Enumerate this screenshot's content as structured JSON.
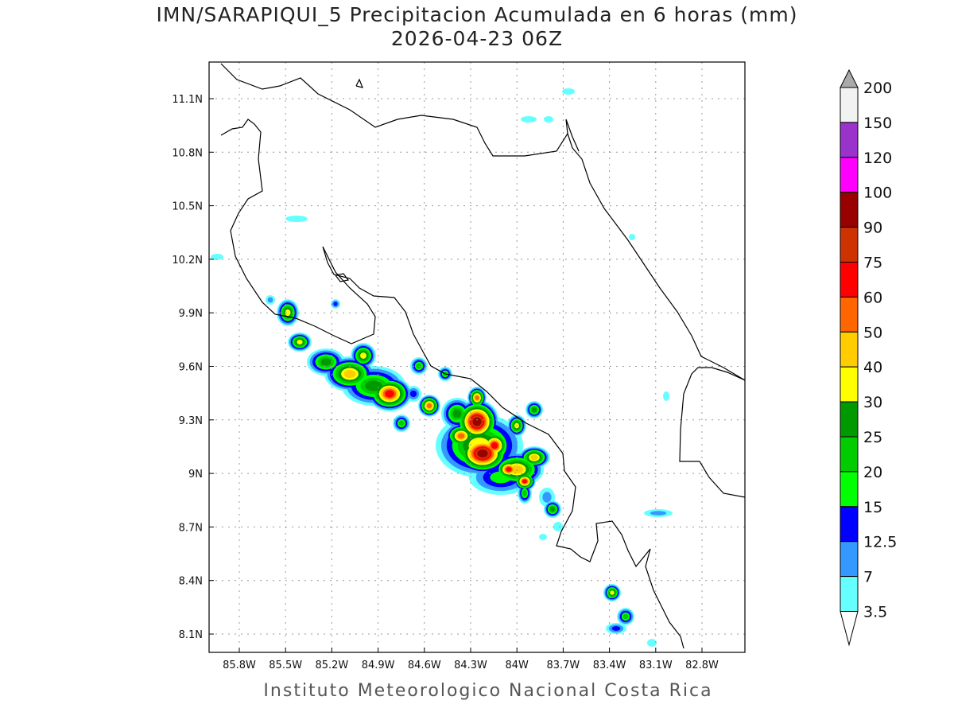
{
  "title": "IMN/SARAPIQUI_5 Precipitacion Acumulada en 6 horas (mm)",
  "subtitle": "2026-04-23 06Z",
  "footer": "Instituto Meteorologico Nacional Costa Rica",
  "map": {
    "lon_ticks": [
      "85.8W",
      "85.5W",
      "85.2W",
      "84.9W",
      "84.6W",
      "84.3W",
      "84W",
      "83.7W",
      "83.4W",
      "83.1W",
      "82.8W"
    ],
    "lat_ticks": [
      "11.1N",
      "10.8N",
      "10.5N",
      "10.2N",
      "9.9N",
      "9.6N",
      "9.3N",
      "9N",
      "8.7N",
      "8.4N",
      "8.1N"
    ]
  },
  "colorbar": {
    "units": "mm",
    "labels": [
      "200",
      "150",
      "120",
      "100",
      "90",
      "75",
      "60",
      "50",
      "40",
      "30",
      "25",
      "20",
      "15",
      "12.5",
      "7",
      "3.5"
    ],
    "colors_top_to_bottom": [
      "#f2f2f2",
      "#9933cc",
      "#ff00ff",
      "#990000",
      "#cc3300",
      "#ff0000",
      "#ff6600",
      "#ffcc00",
      "#ffff00",
      "#009900",
      "#00cc00",
      "#00ff00",
      "#0000ff",
      "#3399ff",
      "#66ffff"
    ],
    "over_color": "#aaaaaa",
    "under_color": "#ffffff"
  }
}
